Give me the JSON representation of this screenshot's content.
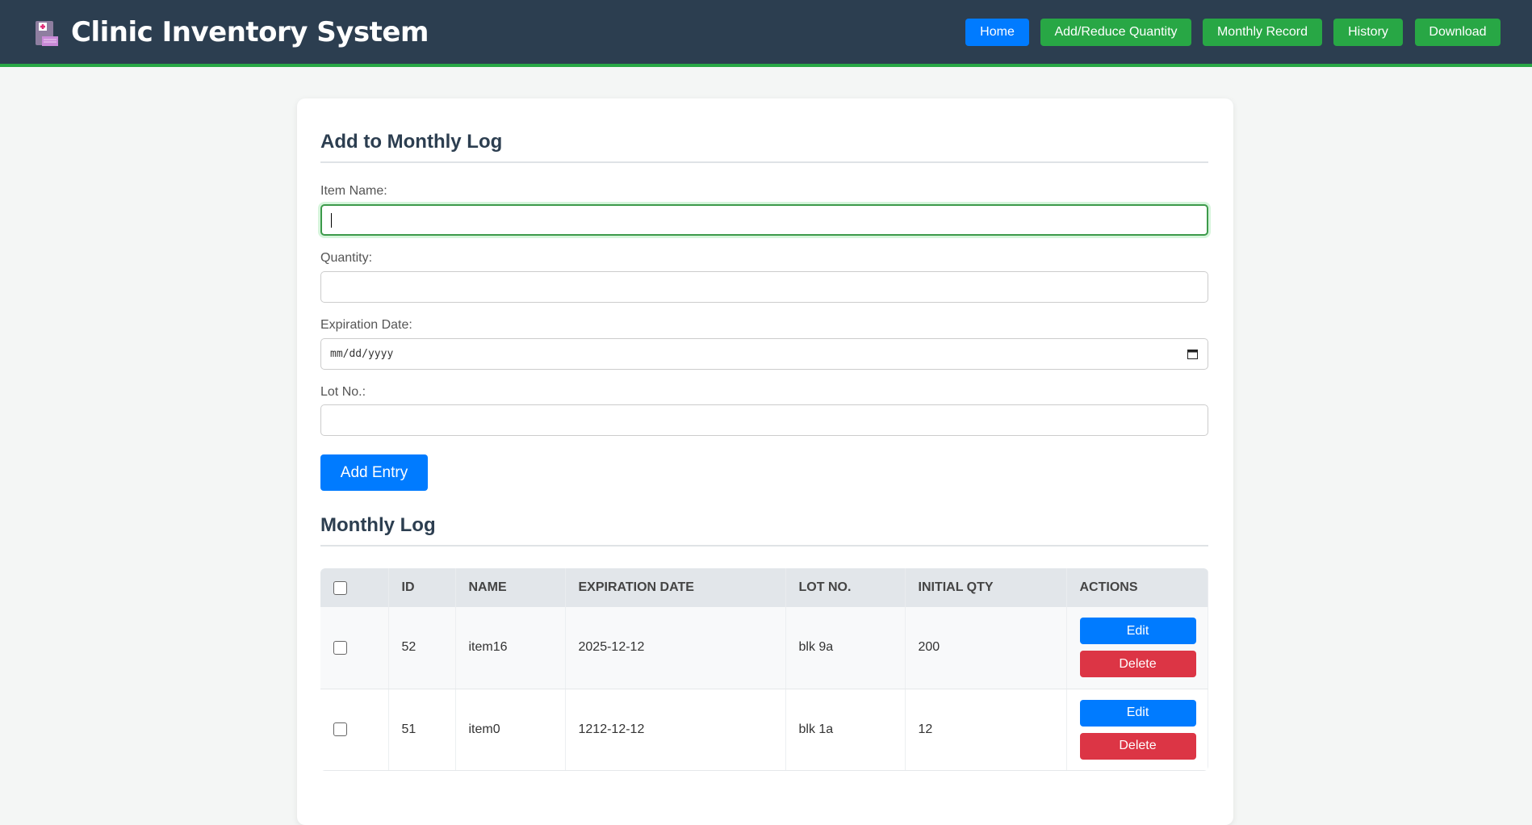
{
  "header": {
    "title": "Clinic Inventory System",
    "logo_icon": "clinic-building-icon",
    "nav": [
      {
        "label": "Home",
        "color": "#007bff"
      },
      {
        "label": "Add/Reduce Quantity",
        "color": "#28a745"
      },
      {
        "label": "Monthly Record",
        "color": "#28a745"
      },
      {
        "label": "History",
        "color": "#28a745"
      },
      {
        "label": "Download",
        "color": "#28a745"
      }
    ]
  },
  "form": {
    "heading": "Add to Monthly Log",
    "item_name_label": "Item Name:",
    "item_name_value": "",
    "quantity_label": "Quantity:",
    "quantity_value": "",
    "expiration_label": "Expiration Date:",
    "expiration_placeholder": "mm/dd/yyyy",
    "lot_label": "Lot No.:",
    "lot_value": "",
    "submit_label": "Add Entry"
  },
  "log": {
    "heading": "Monthly Log",
    "columns": [
      "ID",
      "NAME",
      "EXPIRATION DATE",
      "LOT NO.",
      "INITIAL QTY",
      "ACTIONS"
    ],
    "rows": [
      {
        "id": "52",
        "name": "item16",
        "expiration": "2025-12-12",
        "lot": "blk 9a",
        "qty": "200"
      },
      {
        "id": "51",
        "name": "item0",
        "expiration": "1212-12-12",
        "lot": "blk 1a",
        "qty": "12"
      }
    ],
    "edit_label": "Edit",
    "delete_label": "Delete"
  }
}
